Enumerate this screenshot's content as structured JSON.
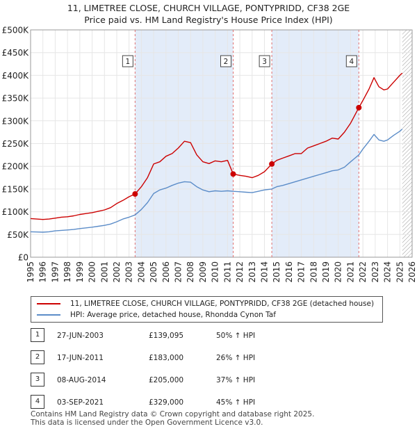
{
  "title_line1": "11, LIMETREE CLOSE, CHURCH VILLAGE, PONTYPRIDD, CF38 2GE",
  "title_line2": "Price paid vs. HM Land Registry's House Price Index (HPI)",
  "colors": {
    "property": "#cc0000",
    "hpi": "#5b8cc8",
    "shade": "#e3ecf9",
    "vline": "#e07070",
    "grid": "#e6e6e6"
  },
  "chart_data": {
    "type": "line",
    "title": "11, LIMETREE CLOSE, CHURCH VILLAGE, PONTYPRIDD, CF38 2GE — Price paid vs. HM Land Registry's House Price Index (HPI)",
    "xlabel": "",
    "ylabel": "",
    "xlim": [
      1995,
      2026
    ],
    "ylim": [
      0,
      500000
    ],
    "y_ticks": [
      0,
      50000,
      100000,
      150000,
      200000,
      250000,
      300000,
      350000,
      400000,
      450000,
      500000
    ],
    "y_tick_labels": [
      "£0",
      "£50K",
      "£100K",
      "£150K",
      "£200K",
      "£250K",
      "£300K",
      "£350K",
      "£400K",
      "£450K",
      "£500K"
    ],
    "x_ticks": [
      1995,
      1996,
      1997,
      1998,
      1999,
      2000,
      2001,
      2002,
      2003,
      2004,
      2005,
      2006,
      2007,
      2008,
      2009,
      2010,
      2011,
      2012,
      2013,
      2014,
      2015,
      2016,
      2017,
      2018,
      2019,
      2020,
      2021,
      2022,
      2023,
      2024,
      2025,
      2026
    ],
    "x_tick_labels": [
      "1995",
      "1996",
      "1997",
      "1998",
      "1999",
      "2000",
      "2001",
      "2002",
      "2003",
      "2004",
      "2005",
      "2006",
      "2007",
      "2008",
      "2009",
      "2010",
      "2011",
      "2012",
      "2013",
      "2014",
      "2015",
      "2016",
      "2017",
      "2018",
      "2019",
      "2020",
      "2021",
      "2022",
      "2023",
      "2024",
      "2025",
      "2026"
    ],
    "grid": true,
    "future_hatch_from": 2025.2,
    "shaded_periods": [
      [
        2003.49,
        2011.46
      ],
      [
        2014.6,
        2021.67
      ]
    ],
    "series": [
      {
        "name": "11, LIMETREE CLOSE, CHURCH VILLAGE, PONTYPRIDD, CF38 2GE (detached house)",
        "color": "#cc0000",
        "x": [
          1995.0,
          1995.5,
          1996.0,
          1996.5,
          1997.0,
          1997.5,
          1998.0,
          1998.5,
          1999.0,
          1999.5,
          2000.0,
          2000.5,
          2001.0,
          2001.5,
          2002.0,
          2002.5,
          2003.0,
          2003.49,
          2004.0,
          2004.5,
          2005.0,
          2005.5,
          2006.0,
          2006.5,
          2007.0,
          2007.5,
          2008.0,
          2008.5,
          2009.0,
          2009.5,
          2010.0,
          2010.5,
          2011.0,
          2011.46,
          2012.0,
          2012.5,
          2013.0,
          2013.5,
          2014.0,
          2014.6,
          2015.0,
          2015.5,
          2016.0,
          2016.5,
          2017.0,
          2017.5,
          2018.0,
          2018.5,
          2019.0,
          2019.5,
          2020.0,
          2020.5,
          2021.0,
          2021.67,
          2022.0,
          2022.5,
          2022.9,
          2023.3,
          2023.7,
          2024.0,
          2024.5,
          2025.0,
          2025.2
        ],
        "y": [
          85000,
          84000,
          83000,
          84000,
          86000,
          88000,
          89000,
          91000,
          94000,
          96000,
          98000,
          101000,
          104000,
          109000,
          118000,
          125000,
          133000,
          139095,
          155000,
          175000,
          205000,
          210000,
          222000,
          228000,
          240000,
          255000,
          252000,
          225000,
          210000,
          206000,
          212000,
          210000,
          213000,
          183000,
          180000,
          178000,
          175000,
          180000,
          188000,
          205000,
          213000,
          218000,
          223000,
          228000,
          228000,
          240000,
          245000,
          250000,
          255000,
          262000,
          260000,
          275000,
          295000,
          329000,
          345000,
          370000,
          395000,
          375000,
          368000,
          370000,
          385000,
          400000,
          405000
        ]
      },
      {
        "name": "HPI: Average price, detached house, Rhondda Cynon Taf",
        "color": "#5b8cc8",
        "x": [
          1995.0,
          1995.5,
          1996.0,
          1996.5,
          1997.0,
          1997.5,
          1998.0,
          1998.5,
          1999.0,
          1999.5,
          2000.0,
          2000.5,
          2001.0,
          2001.5,
          2002.0,
          2002.5,
          2003.0,
          2003.49,
          2004.0,
          2004.5,
          2005.0,
          2005.5,
          2006.0,
          2006.5,
          2007.0,
          2007.5,
          2008.0,
          2008.5,
          2009.0,
          2009.5,
          2010.0,
          2010.5,
          2011.0,
          2011.46,
          2012.0,
          2012.5,
          2013.0,
          2013.5,
          2014.0,
          2014.6,
          2015.0,
          2015.5,
          2016.0,
          2016.5,
          2017.0,
          2017.5,
          2018.0,
          2018.5,
          2019.0,
          2019.5,
          2020.0,
          2020.5,
          2021.0,
          2021.67,
          2022.0,
          2022.5,
          2022.9,
          2023.3,
          2023.7,
          2024.0,
          2024.5,
          2025.0,
          2025.2
        ],
        "y": [
          56000,
          55500,
          55000,
          56000,
          58000,
          59000,
          60000,
          61000,
          63000,
          64500,
          66000,
          68000,
          70000,
          73000,
          78000,
          84000,
          88000,
          93000,
          105000,
          120000,
          140000,
          148000,
          152000,
          158000,
          163000,
          166000,
          165000,
          155000,
          148000,
          144000,
          146000,
          145000,
          146000,
          145000,
          144000,
          143000,
          142000,
          145000,
          148000,
          150000,
          155000,
          158000,
          162000,
          166000,
          170000,
          174000,
          178000,
          182000,
          186000,
          190000,
          192000,
          198000,
          210000,
          225000,
          238000,
          255000,
          270000,
          258000,
          255000,
          258000,
          268000,
          277000,
          282000
        ]
      }
    ],
    "sale_markers": [
      {
        "label": "1",
        "x": 2003.49,
        "y": 139095
      },
      {
        "label": "2",
        "x": 2011.46,
        "y": 183000
      },
      {
        "label": "3",
        "x": 2014.6,
        "y": 205000
      },
      {
        "label": "4",
        "x": 2021.67,
        "y": 329000
      }
    ],
    "legend_position": "below-chart"
  },
  "legend": {
    "property_label": "11, LIMETREE CLOSE, CHURCH VILLAGE, PONTYPRIDD, CF38 2GE (detached house)",
    "hpi_label": "HPI: Average price, detached house, Rhondda Cynon Taf"
  },
  "sales": [
    {
      "num": "1",
      "date": "27-JUN-2003",
      "price": "£139,095",
      "hpi": "50% ↑ HPI"
    },
    {
      "num": "2",
      "date": "17-JUN-2011",
      "price": "£183,000",
      "hpi": "26% ↑ HPI"
    },
    {
      "num": "3",
      "date": "08-AUG-2014",
      "price": "£205,000",
      "hpi": "37% ↑ HPI"
    },
    {
      "num": "4",
      "date": "03-SEP-2021",
      "price": "£329,000",
      "hpi": "45% ↑ HPI"
    }
  ],
  "footer": {
    "line1": "Contains HM Land Registry data © Crown copyright and database right 2025.",
    "line2": "This data is licensed under the Open Government Licence v3.0."
  }
}
